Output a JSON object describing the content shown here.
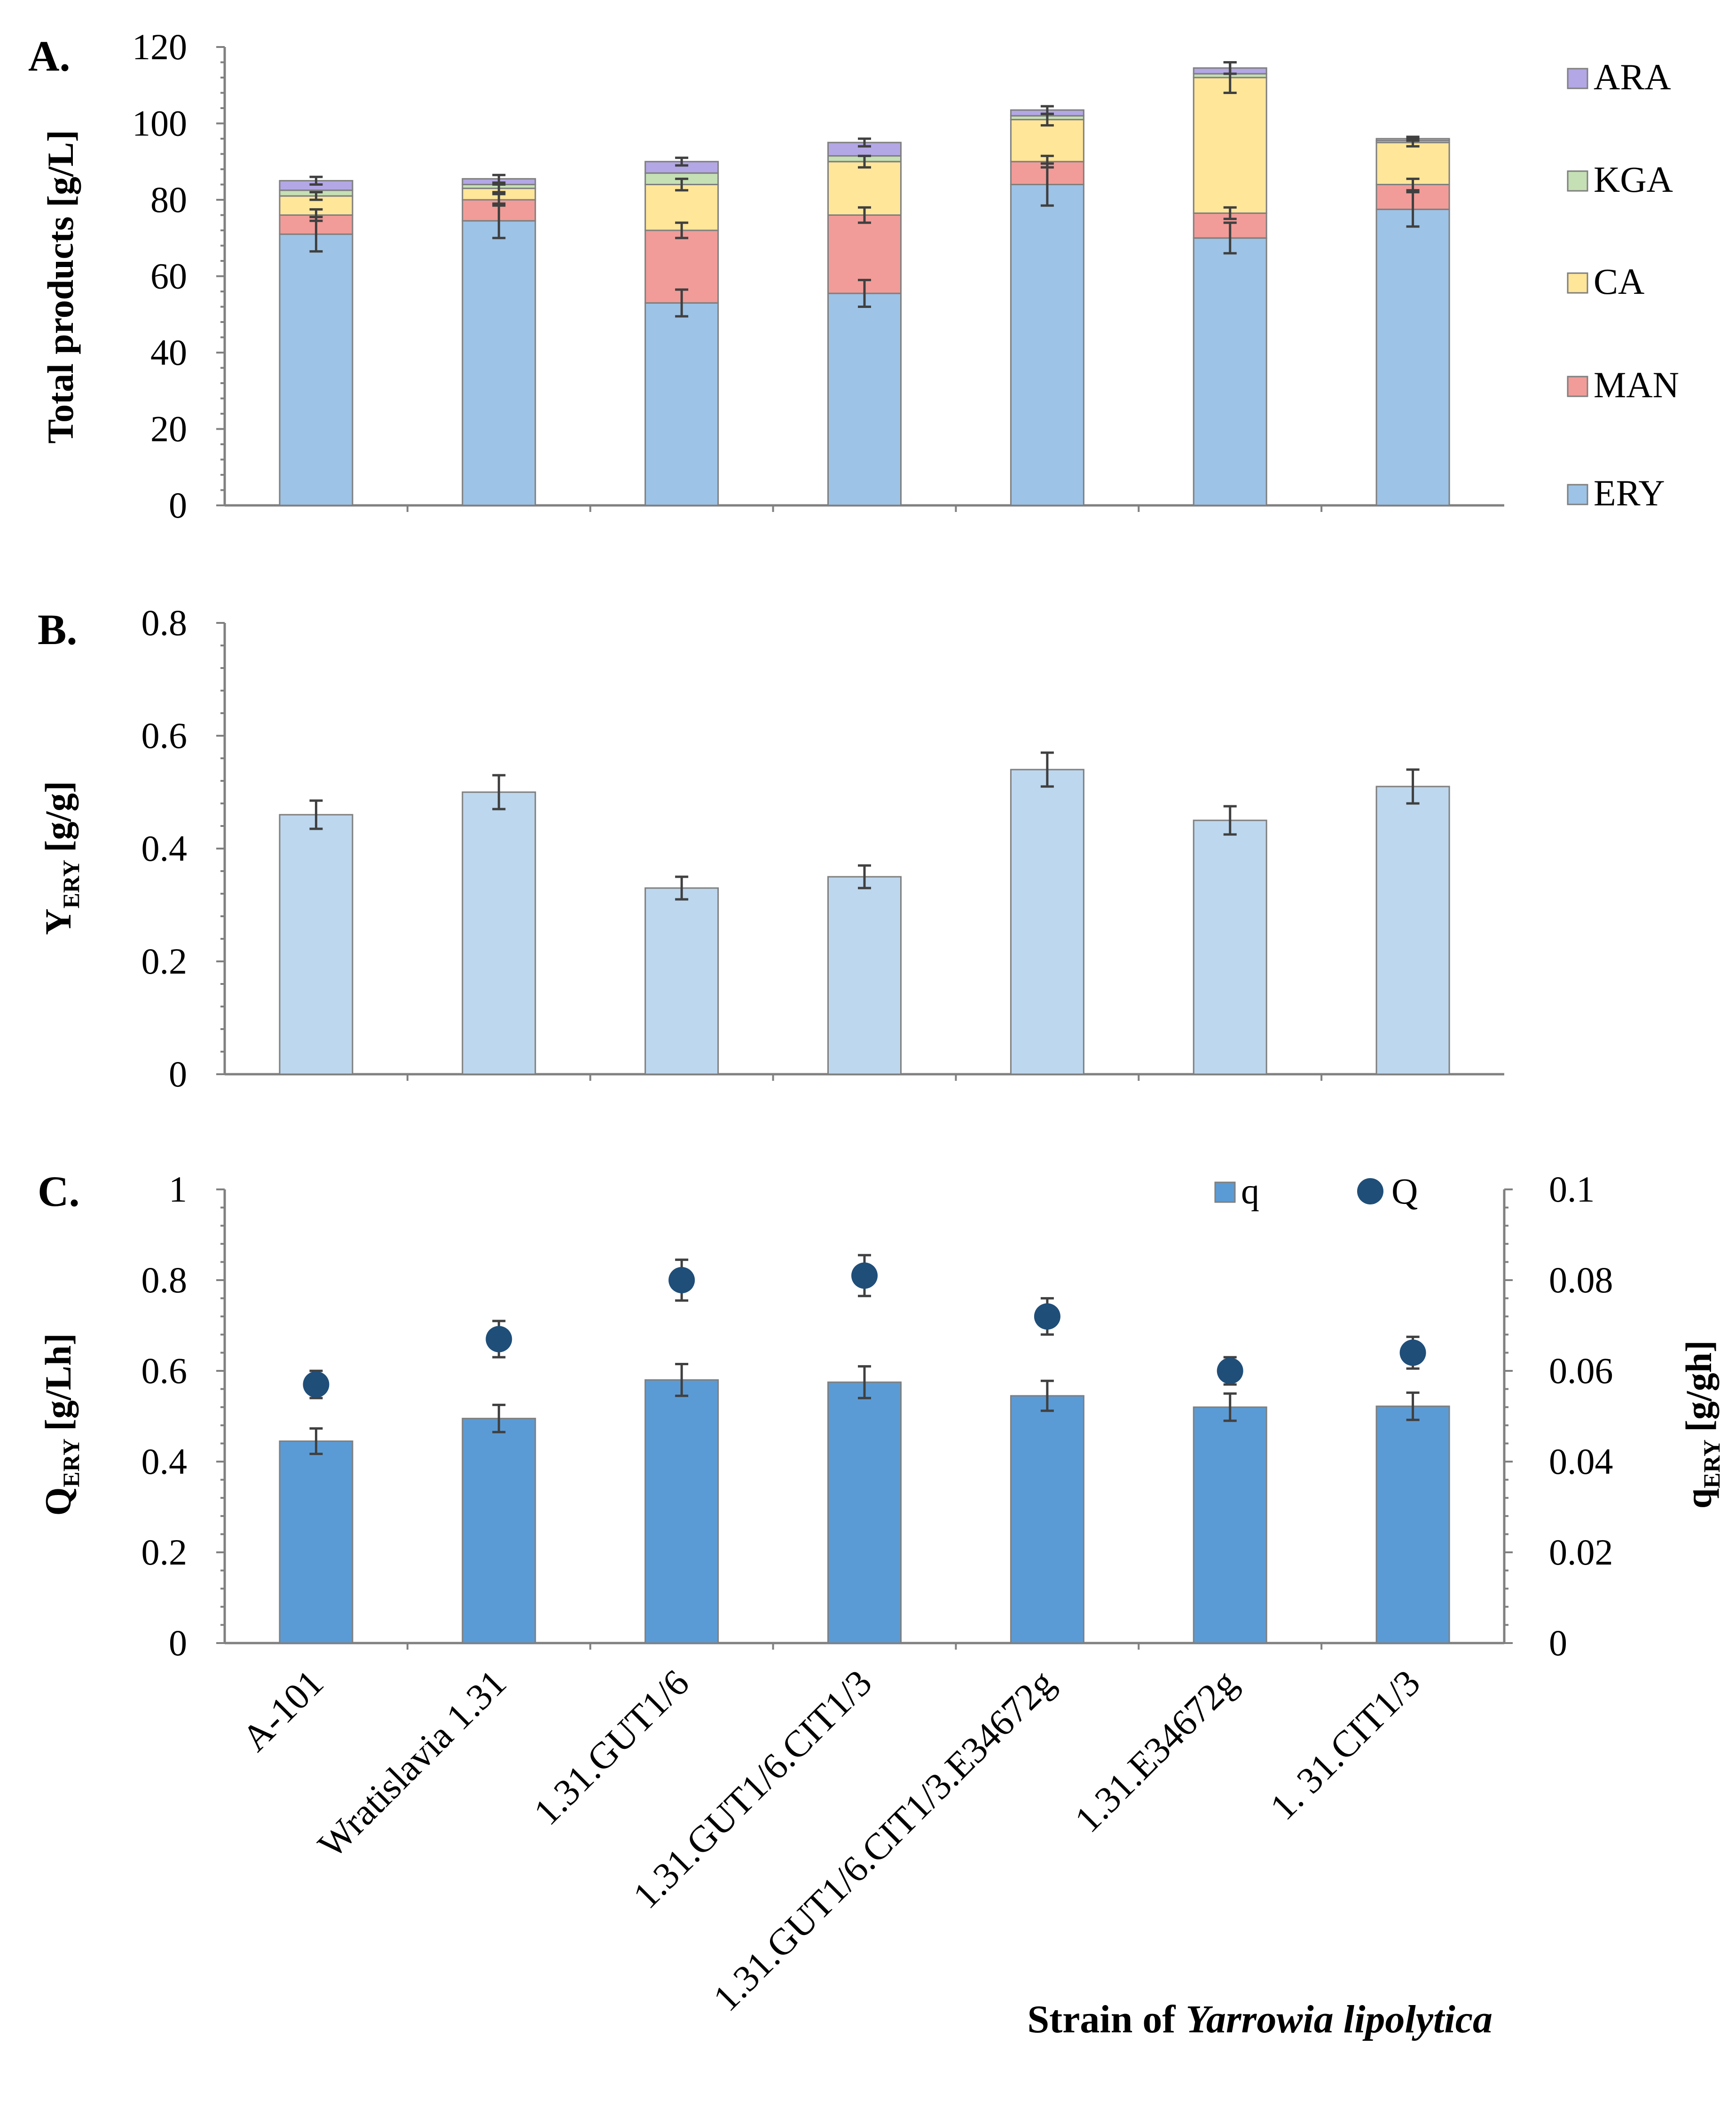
{
  "figure": {
    "x_title_bold": "Strain of",
    "x_title_italic": "Yarrowia lipolytica",
    "categories": [
      "A-101",
      "Wratislavia 1.31",
      "1.31.GUT1/6",
      "1.31.GUT1/6.CIT1/3",
      "1.31.GUT1/6.CIT1/3.E34672g",
      "1.31.E34672g",
      "1. 31.CIT1/3"
    ]
  },
  "colors": {
    "ERY": "#9dc3e6",
    "MAN": "#f19c98",
    "CA": "#ffe699",
    "KGA": "#c5e0b4",
    "ARA": "#b4a7e5",
    "Y": "#bdd7ee",
    "q": "#5b9bd5",
    "Q": "#1f4e79",
    "edge": "#7f7f7f"
  },
  "chart_data": [
    {
      "panel": "A.",
      "type": "bar",
      "stacked": true,
      "ylabel": "Total products [g/L]",
      "ylim": [
        0,
        120
      ],
      "yticks": [
        "0",
        "20",
        "40",
        "60",
        "80",
        "100",
        "120"
      ],
      "categories": [
        "A-101",
        "Wratislavia 1.31",
        "1.31.GUT1/6",
        "1.31.GUT1/6.CIT1/3",
        "1.31.GUT1/6.CIT1/3.E34672g",
        "1.31.E34672g",
        "1. 31.CIT1/3"
      ],
      "series": [
        {
          "name": "ERY",
          "values": [
            71,
            74.5,
            53,
            55.5,
            84,
            70,
            77.5
          ],
          "err": [
            4.5,
            4.5,
            3.5,
            3.5,
            5.5,
            4,
            4.5
          ]
        },
        {
          "name": "MAN",
          "values": [
            5,
            5.5,
            19,
            20.5,
            6,
            6.5,
            6.5
          ],
          "err": [
            1.5,
            1.5,
            2,
            2,
            1.5,
            1.5,
            1.5
          ]
        },
        {
          "name": "CA",
          "values": [
            5,
            3,
            12,
            14,
            11,
            35.5,
            11
          ],
          "err": [
            1,
            1,
            1.5,
            1.5,
            1.5,
            4,
            1
          ]
        },
        {
          "name": "KGA",
          "values": [
            1.5,
            1,
            3,
            1.5,
            1,
            1,
            0.5
          ],
          "err": [
            0,
            0,
            0,
            0,
            0,
            0,
            0
          ]
        },
        {
          "name": "ARA",
          "values": [
            2.5,
            1.5,
            3,
            3.5,
            1.5,
            1.5,
            0.5
          ],
          "err": [
            1,
            1,
            1,
            1,
            1,
            1.5,
            0.5
          ]
        }
      ],
      "legend": [
        "ARA",
        "KGA",
        "CA",
        "MAN",
        "ERY"
      ]
    },
    {
      "panel": "B.",
      "type": "bar",
      "ylabel_main": "Y",
      "ylabel_sub": "ERY",
      "ylabel_unit": "[g/g]",
      "ylim": [
        0,
        0.8
      ],
      "yticks": [
        "0",
        "0.2",
        "0.4",
        "0.6",
        "0.8"
      ],
      "categories": [
        "A-101",
        "Wratislavia 1.31",
        "1.31.GUT1/6",
        "1.31.GUT1/6.CIT1/3",
        "1.31.GUT1/6.CIT1/3.E34672g",
        "1.31.E34672g",
        "1. 31.CIT1/3"
      ],
      "values": [
        0.46,
        0.5,
        0.33,
        0.35,
        0.54,
        0.45,
        0.51
      ],
      "err": [
        0.025,
        0.03,
        0.02,
        0.02,
        0.03,
        0.025,
        0.03
      ]
    },
    {
      "panel": "C.",
      "type": "bar+scatter",
      "ylabel_left_main": "Q",
      "ylabel_left_sub": "ERY",
      "ylabel_left_unit": "[g/Lh]",
      "ylabel_right_main": "q",
      "ylabel_right_sub": "ERY",
      "ylabel_right_unit": "[g/gh]",
      "ylim_left": [
        0,
        1
      ],
      "ylim_right": [
        0,
        0.1
      ],
      "yticks_left": [
        "0",
        "0.2",
        "0.4",
        "0.6",
        "0.8",
        "1"
      ],
      "yticks_right": [
        "0",
        "0.02",
        "0.04",
        "0.06",
        "0.08",
        "0.1"
      ],
      "categories": [
        "A-101",
        "Wratislavia 1.31",
        "1.31.GUT1/6",
        "1.31.GUT1/6.CIT1/3",
        "1.31.GUT1/6.CIT1/3.E34672g",
        "1.31.E34672g",
        "1. 31.CIT1/3"
      ],
      "q": {
        "name": "q",
        "axis": "right",
        "values": [
          0.0445,
          0.0495,
          0.058,
          0.0575,
          0.0545,
          0.052,
          0.0522
        ],
        "err": [
          0.0028,
          0.003,
          0.0035,
          0.0035,
          0.0033,
          0.003,
          0.003
        ]
      },
      "Q": {
        "name": "Q",
        "axis": "left",
        "values": [
          0.57,
          0.67,
          0.8,
          0.81,
          0.72,
          0.6,
          0.64
        ],
        "err": [
          0.03,
          0.04,
          0.045,
          0.045,
          0.04,
          0.03,
          0.035
        ]
      },
      "legend": [
        "q",
        "Q"
      ]
    }
  ]
}
